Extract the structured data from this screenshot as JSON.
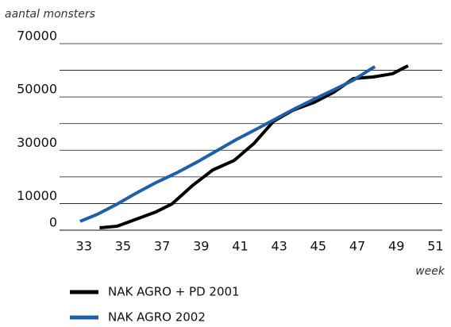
{
  "chart_data": {
    "type": "line",
    "y_label": "aantal monsters",
    "x_label": "week",
    "xlim": [
      31.75,
      51.35
    ],
    "xticks": [
      33,
      35,
      37,
      39,
      41,
      43,
      45,
      47,
      49,
      51
    ],
    "ylim": [
      0,
      70000
    ],
    "yticks": [
      0,
      10000,
      30000,
      50000,
      70000
    ],
    "ygrid": [
      10000,
      20000,
      30000,
      40000,
      50000,
      60000,
      70000
    ],
    "series": [
      {
        "name": "NAK AGRO + PD 2001",
        "color": "#000000",
        "x": [
          33.8,
          34.7,
          35.6,
          36.7,
          37.5,
          38.6,
          39.6,
          40.7,
          41.7,
          42.7,
          43.7,
          44.8,
          45.8,
          46.8,
          47.8,
          48.8,
          49.6
        ],
        "values": [
          900,
          1500,
          3900,
          6900,
          9800,
          17000,
          22600,
          26200,
          32500,
          40800,
          45000,
          48000,
          51800,
          56900,
          57500,
          58700,
          61700
        ]
      },
      {
        "name": "NAK AGRO 2002",
        "color": "#1f5fa8",
        "x": [
          32.8,
          33.7,
          34.7,
          35.7,
          36.7,
          37.8,
          38.8,
          39.8,
          40.8,
          41.8,
          42.8,
          43.8,
          44.8,
          45.8,
          46.8,
          47.5,
          47.9
        ],
        "values": [
          3300,
          6000,
          9800,
          14000,
          17900,
          21700,
          25600,
          29800,
          34000,
          37800,
          41700,
          45600,
          49200,
          52700,
          56300,
          59600,
          61400
        ]
      }
    ]
  }
}
